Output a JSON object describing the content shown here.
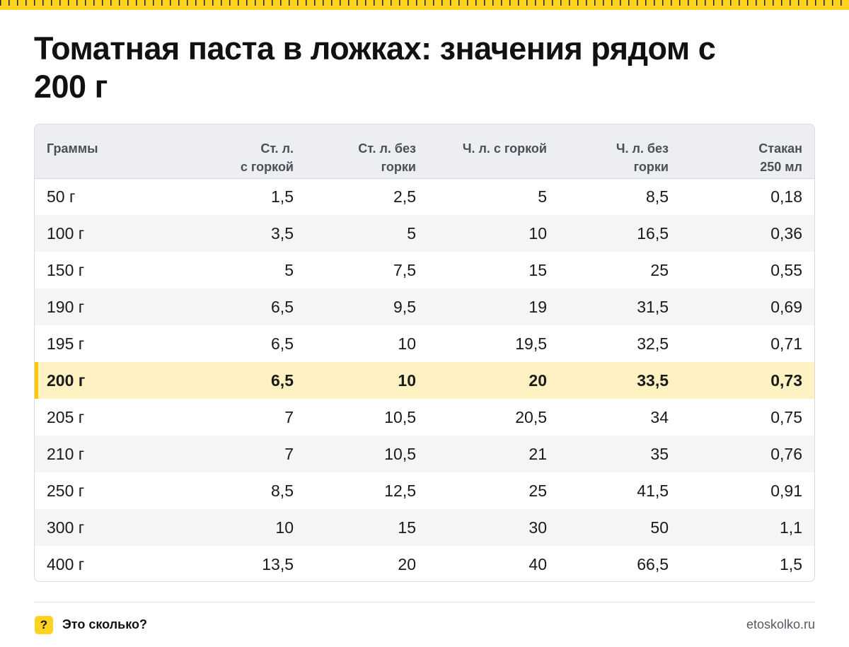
{
  "title": "Томатная паста в ложках: значения рядом с 200 г",
  "table": {
    "headers": [
      "Граммы",
      [
        "Ст. л.",
        "с горкой"
      ],
      [
        "Ст. л. без",
        "горки"
      ],
      [
        "Ч. л. с горкой"
      ],
      [
        "Ч. л. без",
        "горки"
      ],
      [
        "Стакан",
        "250 мл"
      ]
    ],
    "highlight_row": 5,
    "rows": [
      [
        "50 г",
        "1,5",
        "2,5",
        "5",
        "8,5",
        "0,18"
      ],
      [
        "100 г",
        "3,5",
        "5",
        "10",
        "16,5",
        "0,36"
      ],
      [
        "150 г",
        "5",
        "7,5",
        "15",
        "25",
        "0,55"
      ],
      [
        "190 г",
        "6,5",
        "9,5",
        "19",
        "31,5",
        "0,69"
      ],
      [
        "195 г",
        "6,5",
        "10",
        "19,5",
        "32,5",
        "0,71"
      ],
      [
        "200 г",
        "6,5",
        "10",
        "20",
        "33,5",
        "0,73"
      ],
      [
        "205 г",
        "7",
        "10,5",
        "20,5",
        "34",
        "0,75"
      ],
      [
        "210 г",
        "7",
        "10,5",
        "21",
        "35",
        "0,76"
      ],
      [
        "250 г",
        "8,5",
        "12,5",
        "25",
        "41,5",
        "0,91"
      ],
      [
        "300 г",
        "10",
        "15",
        "30",
        "50",
        "1,1"
      ],
      [
        "400 г",
        "13,5",
        "20",
        "40",
        "66,5",
        "1,5"
      ]
    ]
  },
  "footer": {
    "badge": "?",
    "brand": "Это сколько?",
    "site": "etoskolko.ru"
  },
  "colors": {
    "accent": "#ffd21f",
    "highlight_row_bg": "#fff2c2",
    "highlight_marker": "#ffc800",
    "header_bg": "#eceef2",
    "zebra_bg": "#f4f5f7"
  }
}
